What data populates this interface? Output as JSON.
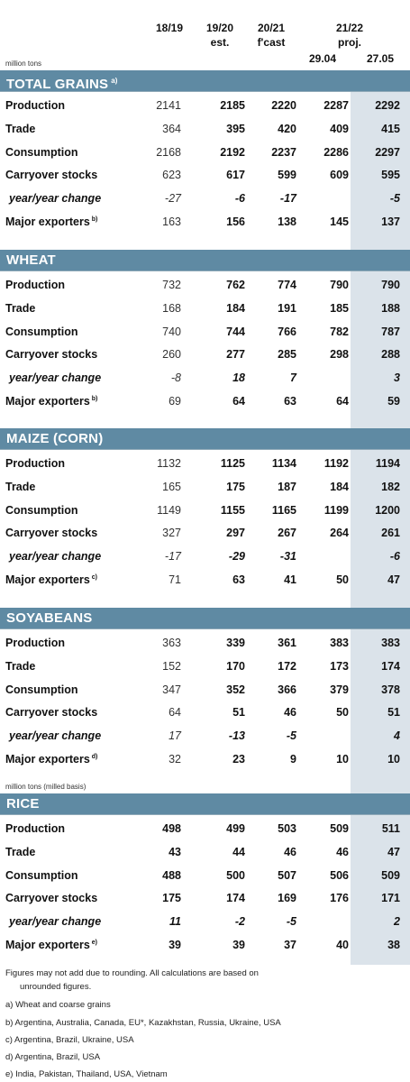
{
  "header": {
    "col_18_19": "18/19",
    "col_19_20": "19/20",
    "col_19_20_sub": "est.",
    "col_20_21": "20/21",
    "col_20_21_sub": "f'cast",
    "col_21_22": "21/22",
    "col_21_22_sub": "proj.",
    "col_2904": "29.04",
    "col_2705": "27.05",
    "unit": "million tons"
  },
  "sections": [
    {
      "title": "TOTAL GRAINS",
      "note": "a)",
      "rows": [
        {
          "label": "Production",
          "values": [
            "2141",
            "2185",
            "2220",
            "2287",
            "2292"
          ]
        },
        {
          "label": "Trade",
          "values": [
            "364",
            "395",
            "420",
            "409",
            "415"
          ]
        },
        {
          "label": "Consumption",
          "values": [
            "2168",
            "2192",
            "2237",
            "2286",
            "2297"
          ]
        },
        {
          "label": "Carryover stocks",
          "values": [
            "623",
            "617",
            "599",
            "609",
            "595"
          ]
        },
        {
          "label": "year/year change",
          "values": [
            "-27",
            "-6",
            "-17",
            "",
            "-5"
          ]
        },
        {
          "label": "Major exporters",
          "note": "b)",
          "values": [
            "163",
            "156",
            "138",
            "145",
            "137"
          ]
        }
      ]
    },
    {
      "title": "WHEAT",
      "note": "",
      "rows": [
        {
          "label": "Production",
          "values": [
            "732",
            "762",
            "774",
            "790",
            "790"
          ]
        },
        {
          "label": "Trade",
          "values": [
            "168",
            "184",
            "191",
            "185",
            "188"
          ]
        },
        {
          "label": "Consumption",
          "values": [
            "740",
            "744",
            "766",
            "782",
            "787"
          ]
        },
        {
          "label": "Carryover stocks",
          "values": [
            "260",
            "277",
            "285",
            "298",
            "288"
          ]
        },
        {
          "label": "year/year change",
          "values": [
            "-8",
            "18",
            "7",
            "",
            "3"
          ]
        },
        {
          "label": "Major exporters",
          "note": "b)",
          "values": [
            "69",
            "64",
            "63",
            "64",
            "59"
          ]
        }
      ]
    },
    {
      "title": "MAIZE (CORN)",
      "note": "",
      "rows": [
        {
          "label": "Production",
          "values": [
            "1132",
            "1125",
            "1134",
            "1192",
            "1194"
          ]
        },
        {
          "label": "Trade",
          "values": [
            "165",
            "175",
            "187",
            "184",
            "182"
          ]
        },
        {
          "label": "Consumption",
          "values": [
            "1149",
            "1155",
            "1165",
            "1199",
            "1200"
          ]
        },
        {
          "label": "Carryover stocks",
          "values": [
            "327",
            "297",
            "267",
            "264",
            "261"
          ]
        },
        {
          "label": "year/year change",
          "values": [
            "-17",
            "-29",
            "-31",
            "",
            "-6"
          ]
        },
        {
          "label": "Major exporters",
          "note": "c)",
          "values": [
            "71",
            "63",
            "41",
            "50",
            "47"
          ]
        }
      ]
    },
    {
      "title": "SOYABEANS",
      "note": "",
      "rows": [
        {
          "label": "Production",
          "values": [
            "363",
            "339",
            "361",
            "383",
            "383"
          ]
        },
        {
          "label": "Trade",
          "values": [
            "152",
            "170",
            "172",
            "173",
            "174"
          ]
        },
        {
          "label": "Consumption",
          "values": [
            "347",
            "352",
            "366",
            "379",
            "378"
          ]
        },
        {
          "label": "Carryover stocks",
          "values": [
            "64",
            "51",
            "46",
            "50",
            "51"
          ]
        },
        {
          "label": "year/year change",
          "values": [
            "17",
            "-13",
            "-5",
            "",
            "4"
          ]
        },
        {
          "label": "Major exporters",
          "note": "d)",
          "values": [
            "32",
            "23",
            "9",
            "10",
            "10"
          ]
        }
      ]
    },
    {
      "title": "RICE",
      "note": "",
      "unit_above": "million tons (milled basis)",
      "rows": [
        {
          "label": "Production",
          "values": [
            "498",
            "499",
            "503",
            "509",
            "511"
          ]
        },
        {
          "label": "Trade",
          "values": [
            "43",
            "44",
            "46",
            "46",
            "47"
          ]
        },
        {
          "label": "Consumption",
          "values": [
            "488",
            "500",
            "507",
            "506",
            "509"
          ]
        },
        {
          "label": "Carryover stocks",
          "values": [
            "175",
            "174",
            "169",
            "176",
            "171"
          ]
        },
        {
          "label": "year/year change",
          "values": [
            "11",
            "-2",
            "-5",
            "",
            "2"
          ]
        },
        {
          "label": "Major exporters",
          "note": "e)",
          "values": [
            "39",
            "39",
            "37",
            "40",
            "38"
          ]
        }
      ]
    }
  ],
  "footnotes": {
    "line1": "Figures may not add due to rounding. All calculations are based on",
    "line2": "unrounded figures.",
    "a": "a) Wheat and coarse grains",
    "b": "b) Argentina, Australia, Canada, EU*, Kazakhstan, Russia, Ukraine, USA",
    "c": "c) Argentina, Brazil, Ukraine, USA",
    "d": "d) Argentina, Brazil, USA",
    "e": "e) India, Pakistan, Thailand, USA, Vietnam"
  }
}
